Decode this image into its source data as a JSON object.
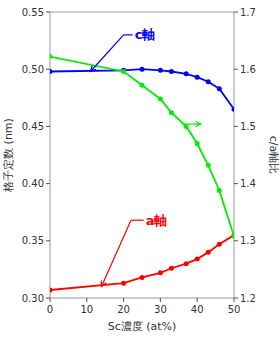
{
  "chart_data": {
    "type": "line",
    "xlabel": "Sc濃度 (at%)",
    "ylabel": "格子定数 (nm)",
    "y2label": "c/a軸比",
    "x": [
      0,
      20,
      25,
      30,
      33,
      37,
      40,
      43,
      46,
      50
    ],
    "xlim": [
      0,
      50
    ],
    "ylim": [
      0.3,
      0.55
    ],
    "y2lim": [
      1.2,
      1.7
    ],
    "xticks": [
      0,
      10,
      20,
      30,
      40,
      50
    ],
    "yticks": [
      {
        "value": 0.3,
        "label": "0.30"
      },
      {
        "value": 0.35,
        "label": "0.35"
      },
      {
        "value": 0.4,
        "label": "0.40"
      },
      {
        "value": 0.45,
        "label": "0.45"
      },
      {
        "value": 0.5,
        "label": "0.50"
      },
      {
        "value": 0.55,
        "label": "0.55"
      }
    ],
    "y2ticks": [
      1.2,
      1.3,
      1.4,
      1.5,
      1.6,
      1.7
    ],
    "grid": false,
    "series": [
      {
        "color": "#0000ff",
        "marker": "circle",
        "values": [
          0.498,
          0.499,
          0.5,
          0.499,
          0.498,
          0.496,
          0.493,
          0.489,
          0.483,
          0.465
        ]
      },
      {
        "color": "#ff0000",
        "marker": "circle",
        "values": [
          0.307,
          0.313,
          0.318,
          0.322,
          0.326,
          0.33,
          0.334,
          0.34,
          0.347,
          0.355
        ]
      },
      {
        "color": "#00ee00",
        "marker": "circle",
        "axis": "y2",
        "values": [
          1.622,
          1.596,
          1.572,
          1.548,
          1.524,
          1.5,
          1.47,
          1.432,
          1.388,
          1.308
        ]
      }
    ],
    "annotations": [
      {
        "text": "c軸",
        "color": "#0000ff",
        "text_x": 23,
        "text_y": 0.53,
        "corner_x": 20,
        "corner_y": 0.53,
        "x": 11,
        "y": 0.498
      },
      {
        "text": "a軸",
        "color": "#ff0000",
        "text_x": 26,
        "text_y": 0.368,
        "corner_x": 22,
        "corner_y": 0.368,
        "x": 14,
        "y": 0.31
      },
      {
        "color": "#00ee00",
        "start_x": 36,
        "start_y": 0.452,
        "x": 41,
        "y": 0.452
      }
    ]
  }
}
